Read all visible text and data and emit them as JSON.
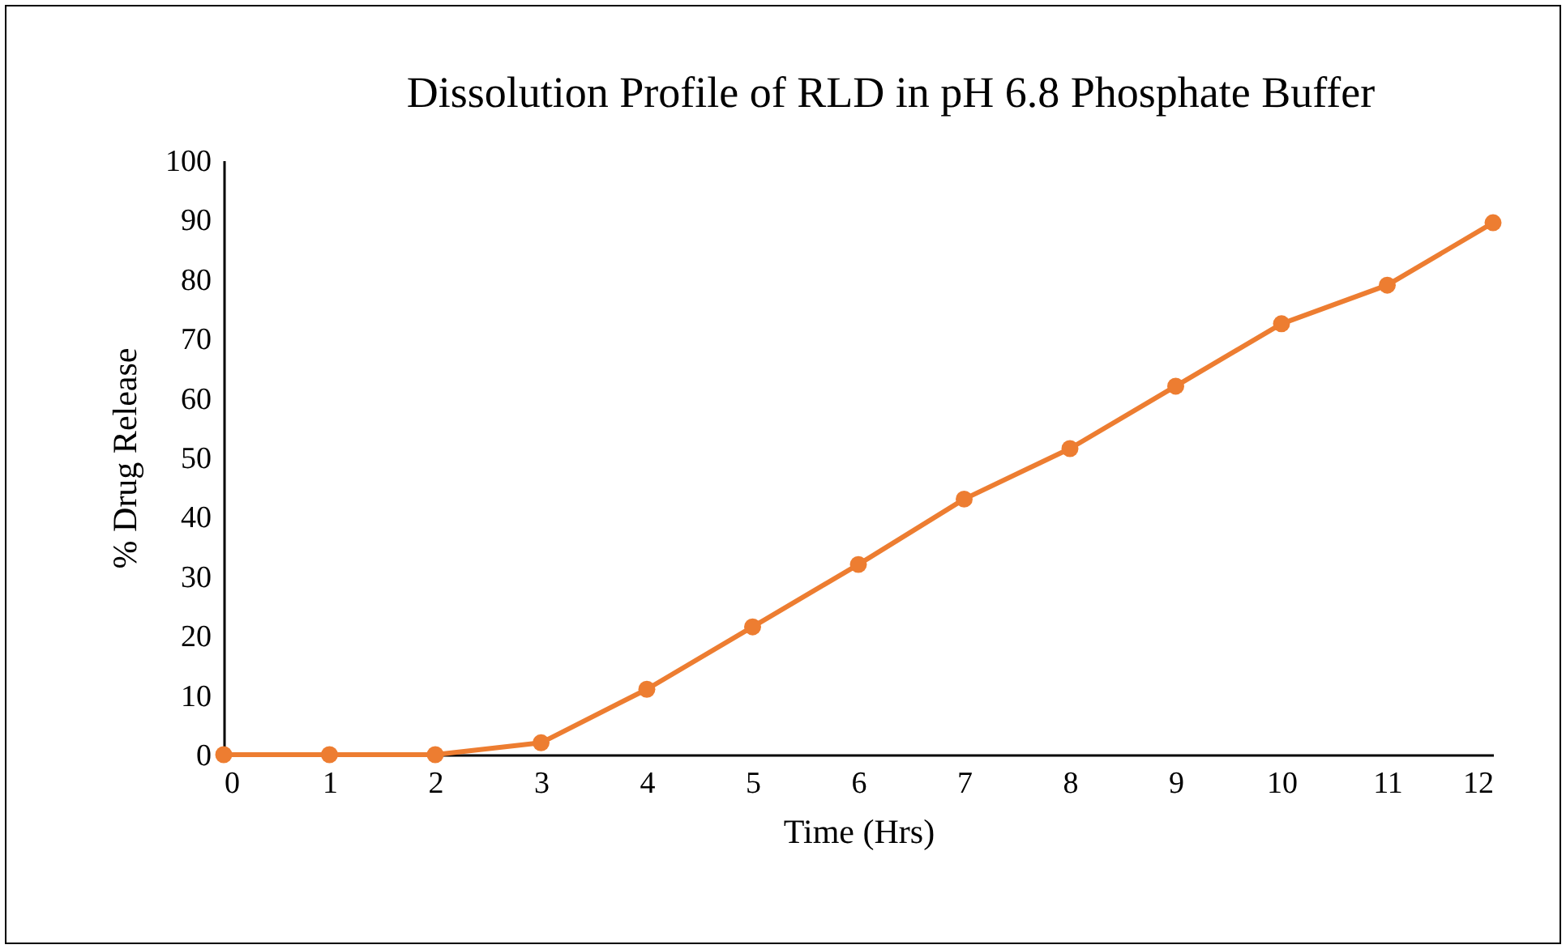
{
  "chart_data": {
    "type": "line",
    "title": "Dissolution Profile of RLD in pH 6.8 Phosphate Buffer",
    "xlabel": "Time (Hrs)",
    "ylabel": "% Drug Release",
    "x": [
      0,
      1,
      2,
      3,
      4,
      5,
      6,
      7,
      8,
      9,
      10,
      11,
      12
    ],
    "series": [
      {
        "color": "#ed7d31",
        "values": [
          0,
          0,
          0,
          2,
          11,
          21.5,
          32,
          43,
          51.5,
          62,
          72.5,
          79,
          89.5
        ]
      }
    ],
    "xlim": [
      0,
      12
    ],
    "xticks": [
      0,
      1,
      2,
      3,
      4,
      5,
      6,
      7,
      8,
      9,
      10,
      11,
      12
    ],
    "ylim": [
      0,
      100
    ],
    "yticks": [
      0,
      10,
      20,
      30,
      40,
      50,
      60,
      70,
      80,
      90,
      100
    ],
    "grid": false,
    "marker": "circle",
    "line_style": "solid"
  }
}
